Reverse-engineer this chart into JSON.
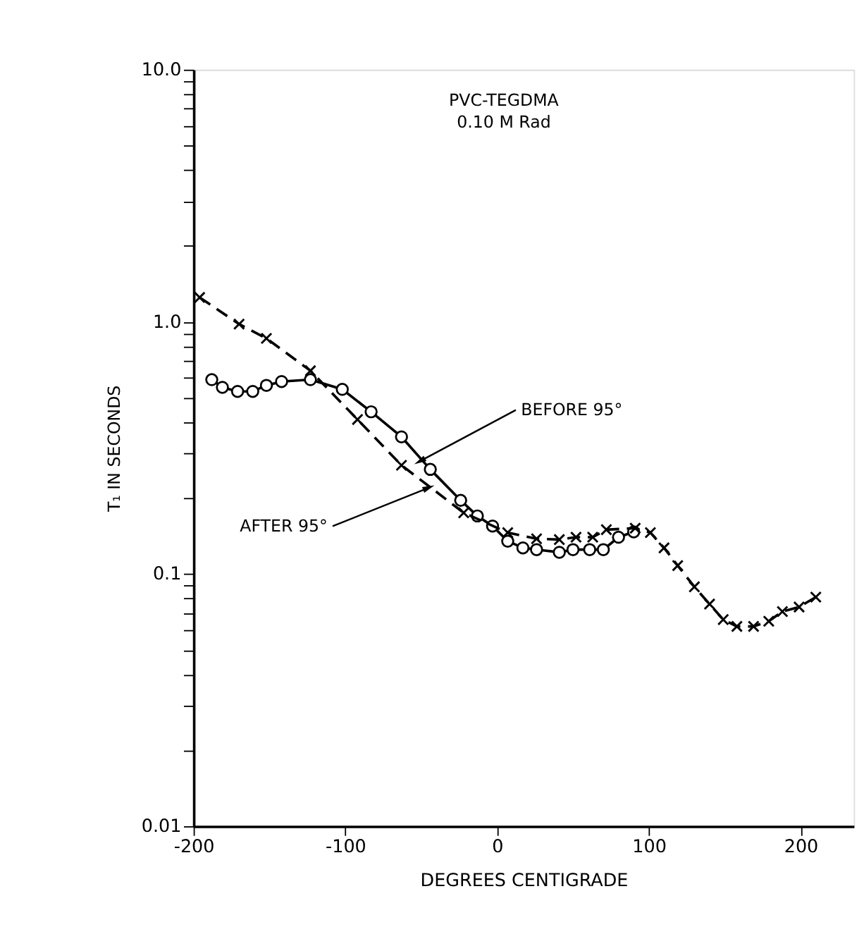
{
  "chart_data": {
    "type": "line",
    "xlabel": "DEGREES CENTIGRADE",
    "ylabel": "T₁ IN SECONDS",
    "annotations": [
      "PVC-TEGDMA",
      "0.10 M Rad",
      {
        "text": "BEFORE 95°",
        "x": -51,
        "y": 0.28
      },
      {
        "text": "AFTER 95°",
        "x": -45,
        "y": 0.22
      }
    ],
    "log": "y",
    "grid": false,
    "xlim": [
      -200,
      235
    ],
    "xticks": [
      -200,
      -100,
      0,
      100,
      200
    ],
    "ylim": [
      0.01,
      10
    ],
    "yticks": [
      0.01,
      {
        "value": 0.02,
        "label": null
      },
      {
        "value": 0.03,
        "label": null
      },
      {
        "value": 0.04,
        "label": null
      },
      {
        "value": 0.05,
        "label": null
      },
      {
        "value": 0.06,
        "label": null
      },
      {
        "value": 0.07,
        "label": null
      },
      {
        "value": 0.08,
        "label": null
      },
      {
        "value": 0.09,
        "label": null
      },
      0.1,
      {
        "value": 0.2,
        "label": null
      },
      {
        "value": 0.3,
        "label": null
      },
      {
        "value": 0.4,
        "label": null
      },
      {
        "value": 0.5,
        "label": null
      },
      {
        "value": 0.6,
        "label": null
      },
      {
        "value": 0.7,
        "label": null
      },
      {
        "value": 0.8,
        "label": null
      },
      {
        "value": 0.9,
        "label": null
      },
      {
        "value": 1,
        "label": "1.0"
      },
      {
        "value": 2,
        "label": null
      },
      {
        "value": 3,
        "label": null
      },
      {
        "value": 4,
        "label": null
      },
      {
        "value": 5,
        "label": null
      },
      {
        "value": 6,
        "label": null
      },
      {
        "value": 7,
        "label": null
      },
      {
        "value": 8,
        "label": null
      },
      {
        "value": 9,
        "label": null
      },
      {
        "value": 10,
        "label": "10.0"
      }
    ],
    "series": [
      {
        "color": "#000000",
        "marker": "circle",
        "line_style": "solid",
        "x": [
          -188,
          -181,
          -171,
          -161,
          -152,
          -142,
          -123,
          -102,
          -83,
          -63,
          -44,
          -24,
          -13,
          -3,
          7,
          17,
          26,
          41,
          50,
          61,
          70,
          80,
          90
        ],
        "values": [
          0.59,
          0.55,
          0.53,
          0.53,
          0.56,
          0.58,
          0.59,
          0.54,
          0.44,
          0.35,
          0.26,
          0.196,
          0.17,
          0.155,
          0.135,
          0.127,
          0.125,
          0.122,
          0.125,
          0.125,
          0.125,
          0.14,
          0.147
        ]
      },
      {
        "color": "#000000",
        "marker": "cross",
        "line_style": "dashed",
        "x": [
          -196,
          -170,
          -152,
          -123,
          -92,
          -63,
          -22,
          7,
          26,
          41,
          52,
          63,
          72,
          91,
          101,
          110,
          119,
          130,
          140,
          149,
          158,
          169,
          179,
          188,
          199,
          210
        ],
        "values": [
          1.25,
          0.98,
          0.86,
          0.64,
          0.41,
          0.27,
          0.175,
          0.146,
          0.138,
          0.137,
          0.14,
          0.14,
          0.15,
          0.152,
          0.146,
          0.127,
          0.108,
          0.089,
          0.076,
          0.066,
          0.062,
          0.062,
          0.065,
          0.071,
          0.074,
          0.081
        ]
      }
    ]
  }
}
